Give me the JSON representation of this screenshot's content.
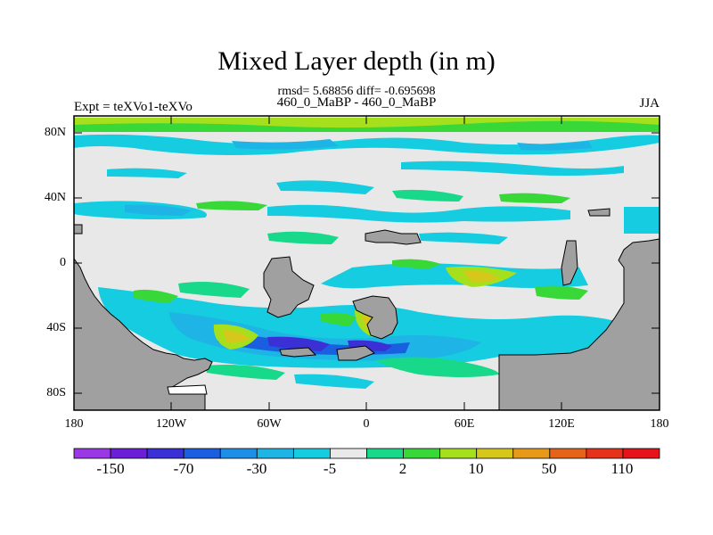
{
  "header": {
    "title": "Mixed Layer depth (in m)",
    "stats": "rmsd= 5.68856 diff= -0.695698",
    "subtitle": "460_0_MaBP - 460_0_MaBP",
    "left_label": "Expt = teXVo1-teXVo",
    "right_label": "JJA"
  },
  "axes": {
    "lat_labels": [
      "80N",
      "40N",
      "0",
      "40S",
      "80S"
    ],
    "lon_labels": [
      "180",
      "120W",
      "60W",
      "0",
      "60E",
      "120E",
      "180"
    ]
  },
  "colorbar": {
    "labels": [
      "-150",
      "-70",
      "-30",
      "-5",
      "2",
      "10",
      "50",
      "110"
    ],
    "colors": [
      "#9b38e6",
      "#6a1ed8",
      "#3b2fd6",
      "#1a5fe0",
      "#1e8fe6",
      "#1eb4e6",
      "#16cce0",
      "#e9e9e9",
      "#18d88a",
      "#38d838",
      "#a6e01c",
      "#d6c81a",
      "#e69a18",
      "#e6641a",
      "#e6321a",
      "#e6141a"
    ]
  },
  "map": {
    "land_color": "#a0a0a0",
    "ocean_background": "#e8e8e8"
  }
}
